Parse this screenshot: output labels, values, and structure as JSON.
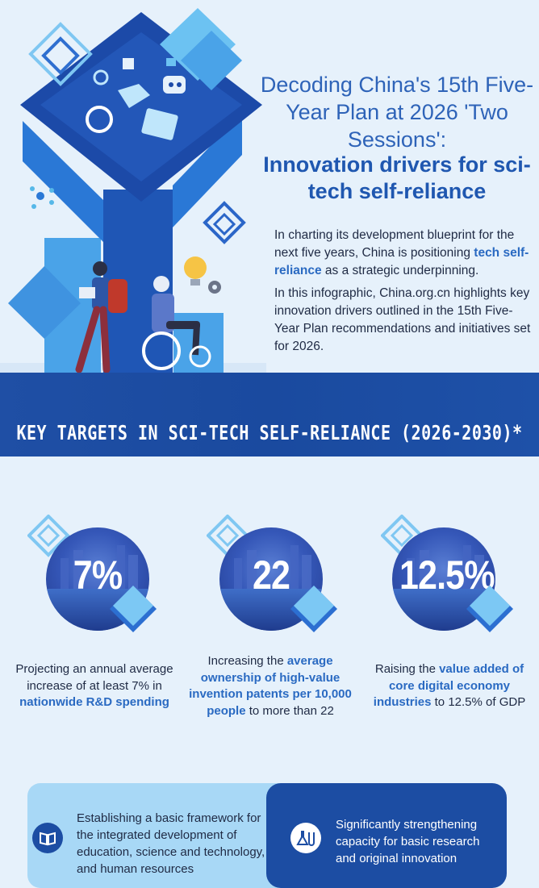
{
  "header": {
    "title_line1": "Decoding China's 15th Five-Year Plan at 2026 'Two Sessions':",
    "title_line2": "Innovation drivers for sci-tech self-reliance"
  },
  "intro": {
    "p1_before": "In charting its development blueprint for the next five years, China is positioning ",
    "p1_highlight": "tech self-reliance",
    "p1_after": " as a strategic underpinning.",
    "p2": "In this infographic, China.org.cn highlights key innovation drivers outlined in the 15th Five-Year Plan recommendations and initiatives set for 2026."
  },
  "banner": {
    "title": "KEY TARGETS IN SCI-TECH SELF-RELIANCE (2026-2030)*"
  },
  "targets": [
    {
      "value": "7%",
      "desc_before": "Projecting an annual average increase of at least 7% in ",
      "desc_highlight": "nationwide R&D spending",
      "desc_after": ""
    },
    {
      "value": "22",
      "desc_before": "Increasing the ",
      "desc_highlight": "average ownership of high-value invention patents per 10,000 people",
      "desc_after": " to more than 22"
    },
    {
      "value": "12.5%",
      "desc_before": "Raising the ",
      "desc_highlight": "value added of core digital economy industries",
      "desc_after": " to 12.5% of GDP"
    }
  ],
  "cards": {
    "left": {
      "text": "Establishing a basic framework for the integrated development of education, science and technology, and human resources",
      "icon": "book-icon"
    },
    "right": {
      "text": "Significantly strengthening capacity for basic research and original innovation",
      "icon": "lab-flask-icon"
    }
  },
  "colors": {
    "page_bg": "#e6f1fb",
    "title_blue": "#2e63b8",
    "banner_blue": "#1f4fa5",
    "highlight_blue": "#2a6ac2",
    "card_light": "#a8d8f6",
    "card_dark": "#1c4da3"
  }
}
